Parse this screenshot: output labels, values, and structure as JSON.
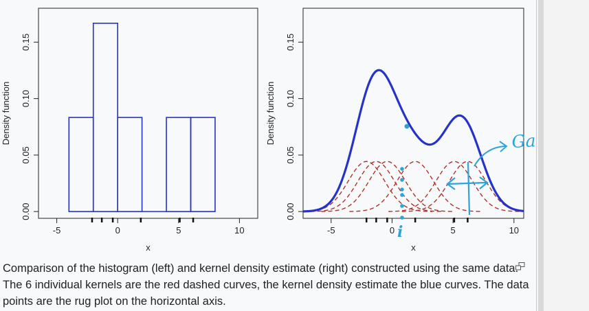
{
  "caption": {
    "text": "Comparison of the histogram (left) and kernel density estimate (right) constructed using the same data. The 6 individual kernels are the red dashed curves, the kernel density estimate the blue curves. The data points are the rug plot on the horizontal axis."
  },
  "annotations": {
    "gaussian": "Gaussian",
    "i_mark": "i"
  },
  "colors": {
    "blue": "#2632c8",
    "red": "#b03028",
    "annotation": "#2ea3d6",
    "background": "#f8f9fa"
  },
  "chart_data": [
    {
      "type": "histogram",
      "xlabel": "x",
      "ylabel": "Density function",
      "xlim": [
        -6.5,
        11.5
      ],
      "ylim": [
        -0.006,
        0.18
      ],
      "xticks": [
        -5,
        0,
        5,
        10
      ],
      "yticks": [
        0.0,
        0.05,
        0.1,
        0.15
      ],
      "ytick_labels": [
        "0.00",
        "0.05",
        "0.10",
        "0.15"
      ],
      "bins": [
        {
          "x0": -4,
          "x1": -2,
          "density": 0.0833
        },
        {
          "x0": -2,
          "x1": 0,
          "density": 0.1667
        },
        {
          "x0": 0,
          "x1": 2,
          "density": 0.0833
        },
        {
          "x0": 2,
          "x1": 4,
          "density": 0.0
        },
        {
          "x0": 4,
          "x1": 6,
          "density": 0.0833
        },
        {
          "x0": 6,
          "x1": 8,
          "density": 0.0833
        }
      ],
      "rug": [
        -2.1,
        -1.3,
        -0.4,
        1.9,
        5.1,
        6.2
      ]
    },
    {
      "type": "line",
      "xlabel": "x",
      "ylabel": "Density function",
      "xlim": [
        -7.3,
        10.8
      ],
      "ylim": [
        -0.006,
        0.18
      ],
      "xticks": [
        -5,
        0,
        5,
        10
      ],
      "yticks": [
        0.0,
        0.05,
        0.1,
        0.15
      ],
      "ytick_labels": [
        "0.00",
        "0.05",
        "0.10",
        "0.15"
      ],
      "kernel": "gaussian",
      "bandwidth": 1.5,
      "data_points": [
        -2.1,
        -1.3,
        -0.4,
        1.9,
        5.1,
        6.2
      ],
      "rug": [
        -2.1,
        -1.3,
        -0.4,
        1.9,
        5.1,
        6.2
      ]
    }
  ]
}
